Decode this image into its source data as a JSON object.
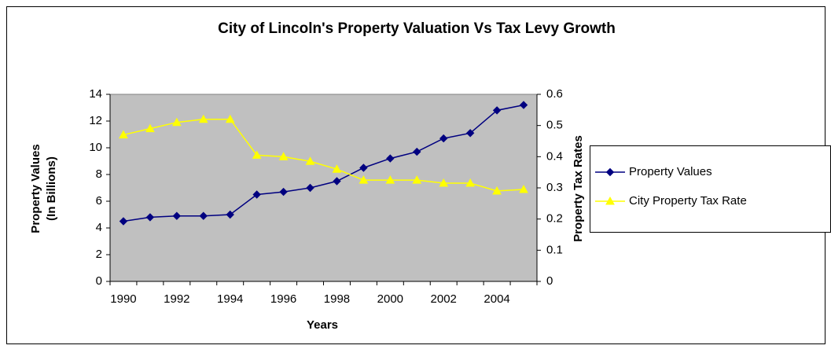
{
  "chart_data": {
    "type": "line",
    "title": "City of Lincoln's Property Valuation Vs Tax Levy Growth",
    "xlabel": "Years",
    "ylabel": [
      "Property Values",
      "(In Billions)"
    ],
    "y2label": "Property Tax Rates",
    "categories": [
      "1990",
      null,
      "1992",
      null,
      "1994",
      null,
      "1996",
      null,
      "1998",
      null,
      "2000",
      null,
      "2002",
      null,
      "2004",
      null
    ],
    "series": [
      {
        "name": "Property Values",
        "color": "#000080",
        "marker": "diamond",
        "values": [
          4.5,
          4.8,
          4.9,
          4.9,
          5.0,
          6.5,
          6.7,
          7.0,
          7.5,
          8.5,
          9.2,
          9.7,
          10.7,
          11.1,
          12.8,
          13.2
        ]
      },
      {
        "name": "City Property Tax Rate",
        "color": "#ffff00",
        "marker": "triangle",
        "axis": "y2",
        "values": [
          0.47,
          0.49,
          0.51,
          0.52,
          0.52,
          0.405,
          0.4,
          0.385,
          0.36,
          0.325,
          0.325,
          0.325,
          0.315,
          0.315,
          0.29,
          0.295
        ]
      }
    ],
    "ylim": [
      0,
      14
    ],
    "yticks": [
      0,
      2,
      4,
      6,
      8,
      10,
      12,
      14
    ],
    "y2lim": [
      0,
      0.6
    ],
    "y2ticks": [
      0,
      0.1,
      0.2,
      0.3,
      0.4,
      0.5,
      0.6
    ],
    "plot_background": "#c0c0c0",
    "legend": "right"
  }
}
